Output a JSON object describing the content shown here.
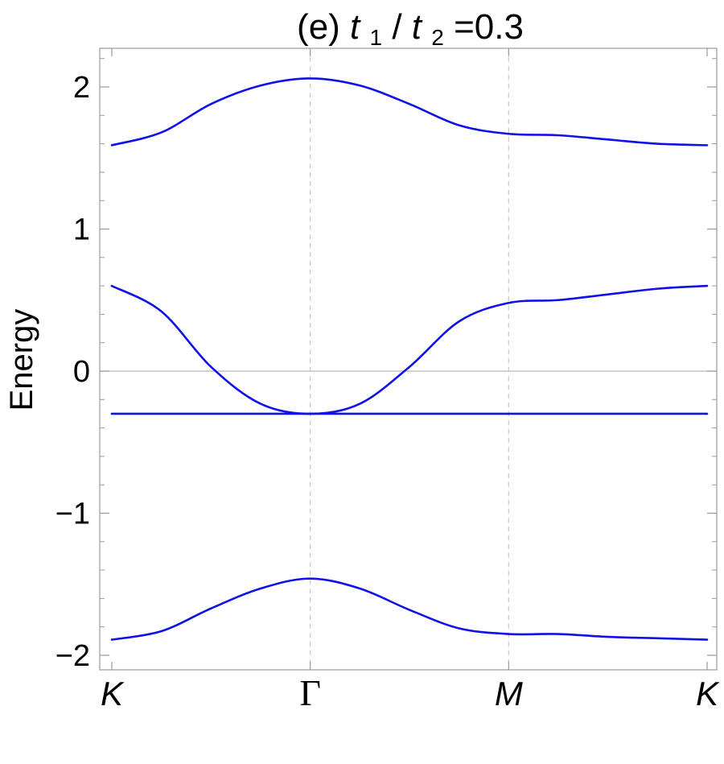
{
  "chart_data": {
    "type": "line",
    "title": {
      "prefix": "(e) ",
      "var1": "t",
      "sub1": "1",
      "slash": "/",
      "var2": "t",
      "sub2": "2",
      "suffix": "=0.3"
    },
    "xlabel": "",
    "ylabel": "Energy",
    "xlim": [
      0,
      3
    ],
    "ylim": [
      -2.12,
      2.28
    ],
    "high_symbol_points": [
      {
        "label": "K",
        "x": 0,
        "style": "italic"
      },
      {
        "label": "Γ",
        "x": 1,
        "style": "greek"
      },
      {
        "label": "M",
        "x": 2,
        "style": "italic"
      },
      {
        "label": "K",
        "x": 3,
        "style": "italic"
      }
    ],
    "y_ticks_major": [
      {
        "value": -2,
        "label": "−2"
      },
      {
        "value": -1,
        "label": "−1"
      },
      {
        "value": 0,
        "label": "0"
      },
      {
        "value": 1,
        "label": "1"
      },
      {
        "value": 2,
        "label": "2"
      }
    ],
    "y_ticks_minor": [
      -1.8,
      -1.6,
      -1.4,
      -1.2,
      -0.8,
      -0.6,
      -0.4,
      -0.2,
      0.2,
      0.4,
      0.6,
      0.8,
      1.2,
      1.4,
      1.6,
      1.8,
      2.2
    ],
    "zero_line": true,
    "vertical_gridlines_at": [
      1,
      2
    ],
    "series_color": "#1010e8",
    "series": [
      {
        "x": [
          0,
          0.25,
          0.5,
          0.75,
          1,
          1.25,
          1.5,
          1.75,
          2,
          2.25,
          2.5,
          2.75,
          3
        ],
        "y": [
          1.59,
          1.68,
          1.88,
          2.01,
          2.06,
          2.01,
          1.88,
          1.73,
          1.67,
          1.66,
          1.63,
          1.6,
          1.59
        ]
      },
      {
        "x": [
          0,
          0.25,
          0.5,
          0.75,
          1,
          1.25,
          1.5,
          1.75,
          2,
          2.25,
          2.5,
          2.75,
          3
        ],
        "y": [
          0.6,
          0.42,
          0.03,
          -0.23,
          -0.3,
          -0.23,
          0.03,
          0.35,
          0.48,
          0.5,
          0.54,
          0.58,
          0.6
        ]
      },
      {
        "x": [
          0,
          3
        ],
        "y": [
          -0.3,
          -0.3
        ]
      },
      {
        "x": [
          0,
          0.25,
          0.5,
          0.75,
          1,
          1.25,
          1.5,
          1.75,
          2,
          2.25,
          2.5,
          2.75,
          3
        ],
        "y": [
          -1.89,
          -1.83,
          -1.67,
          -1.53,
          -1.46,
          -1.53,
          -1.68,
          -1.81,
          -1.85,
          -1.85,
          -1.87,
          -1.88,
          -1.89
        ]
      }
    ]
  }
}
